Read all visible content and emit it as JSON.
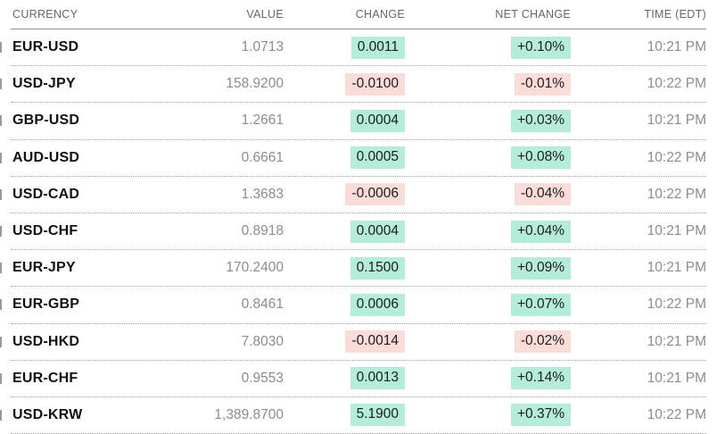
{
  "table": {
    "columns": {
      "currency": "CURRENCY",
      "value": "VALUE",
      "change": "CHANGE",
      "net_change": "NET CHANGE",
      "time": "TIME (EDT)"
    },
    "rows": [
      {
        "pair": "EUR-USD",
        "value": "1.0713",
        "change": "0.0011",
        "net_change": "+0.10%",
        "trend": "up",
        "time": "10:21 PM"
      },
      {
        "pair": "USD-JPY",
        "value": "158.9200",
        "change": "-0.0100",
        "net_change": "-0.01%",
        "trend": "down",
        "time": "10:22 PM"
      },
      {
        "pair": "GBP-USD",
        "value": "1.2661",
        "change": "0.0004",
        "net_change": "+0.03%",
        "trend": "up",
        "time": "10:21 PM"
      },
      {
        "pair": "AUD-USD",
        "value": "0.6661",
        "change": "0.0005",
        "net_change": "+0.08%",
        "trend": "up",
        "time": "10:22 PM"
      },
      {
        "pair": "USD-CAD",
        "value": "1.3683",
        "change": "-0.0006",
        "net_change": "-0.04%",
        "trend": "down",
        "time": "10:22 PM"
      },
      {
        "pair": "USD-CHF",
        "value": "0.8918",
        "change": "0.0004",
        "net_change": "+0.04%",
        "trend": "up",
        "time": "10:21 PM"
      },
      {
        "pair": "EUR-JPY",
        "value": "170.2400",
        "change": "0.1500",
        "net_change": "+0.09%",
        "trend": "up",
        "time": "10:21 PM"
      },
      {
        "pair": "EUR-GBP",
        "value": "0.8461",
        "change": "0.0006",
        "net_change": "+0.07%",
        "trend": "up",
        "time": "10:22 PM"
      },
      {
        "pair": "USD-HKD",
        "value": "7.8030",
        "change": "-0.0014",
        "net_change": "-0.02%",
        "trend": "down",
        "time": "10:21 PM"
      },
      {
        "pair": "EUR-CHF",
        "value": "0.9553",
        "change": "0.0013",
        "net_change": "+0.14%",
        "trend": "up",
        "time": "10:21 PM"
      },
      {
        "pair": "USD-KRW",
        "value": "1,389.8700",
        "change": "5.1900",
        "net_change": "+0.37%",
        "trend": "up",
        "time": "10:22 PM"
      }
    ]
  },
  "colors": {
    "positive_bg": "#b4edd9",
    "negative_bg": "#fbdcd9",
    "badge_text": "#1c1c1c",
    "muted_text": "#8c8c8c",
    "header_text": "#676767"
  }
}
